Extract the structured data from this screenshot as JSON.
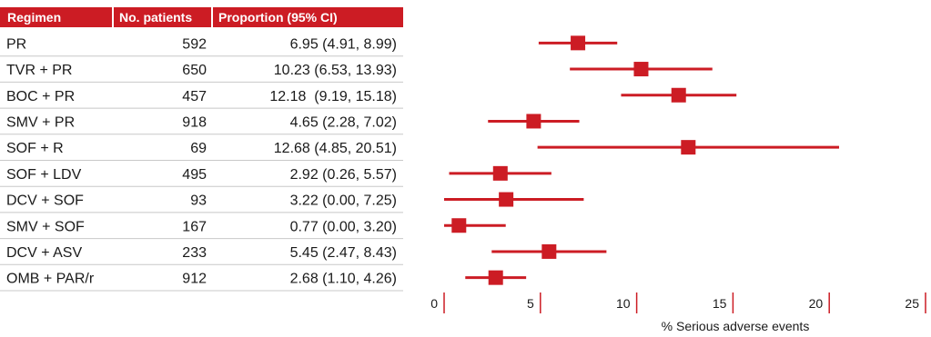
{
  "colors": {
    "accent": "#cc1c24",
    "row_divider": "#c8c8c8",
    "axis": "#cc1c24",
    "text": "#1a1a1a"
  },
  "chart_data": {
    "type": "forest",
    "columns": [
      "Regimen",
      "No. patients",
      "Proportion (95% CI)"
    ],
    "xlabel": "% Serious adverse events",
    "xlim": [
      0,
      25
    ],
    "xticks": [
      0,
      5,
      10,
      15,
      20,
      25
    ],
    "rows": [
      {
        "regimen": "PR",
        "n": "592",
        "label": "6.95 (4.91, 8.99)",
        "est": 6.95,
        "lo": 4.91,
        "hi": 8.99
      },
      {
        "regimen": "TVR + PR",
        "n": "650",
        "label": "10.23 (6.53, 13.93)",
        "est": 10.23,
        "lo": 6.53,
        "hi": 13.93
      },
      {
        "regimen": "BOC + PR",
        "n": "457",
        "label": "12.18  (9.19, 15.18)",
        "est": 12.18,
        "lo": 9.19,
        "hi": 15.18
      },
      {
        "regimen": "SMV + PR",
        "n": "918",
        "label": "4.65 (2.28, 7.02)",
        "est": 4.65,
        "lo": 2.28,
        "hi": 7.02
      },
      {
        "regimen": "SOF + R",
        "n": "69",
        "label": "12.68 (4.85, 20.51)",
        "est": 12.68,
        "lo": 4.85,
        "hi": 20.51
      },
      {
        "regimen": "SOF + LDV",
        "n": "495",
        "label": "2.92 (0.26, 5.57)",
        "est": 2.92,
        "lo": 0.26,
        "hi": 5.57
      },
      {
        "regimen": "DCV + SOF",
        "n": "93",
        "label": "3.22 (0.00, 7.25)",
        "est": 3.22,
        "lo": 0.0,
        "hi": 7.25
      },
      {
        "regimen": "SMV + SOF",
        "n": "167",
        "label": "0.77 (0.00, 3.20)",
        "est": 0.77,
        "lo": 0.0,
        "hi": 3.2
      },
      {
        "regimen": "DCV + ASV",
        "n": "233",
        "label": "5.45 (2.47, 8.43)",
        "est": 5.45,
        "lo": 2.47,
        "hi": 8.43
      },
      {
        "regimen": "OMB + PAR/r",
        "n": "912",
        "label": "2.68 (1.10, 4.26)",
        "est": 2.68,
        "lo": 1.1,
        "hi": 4.26
      }
    ]
  }
}
